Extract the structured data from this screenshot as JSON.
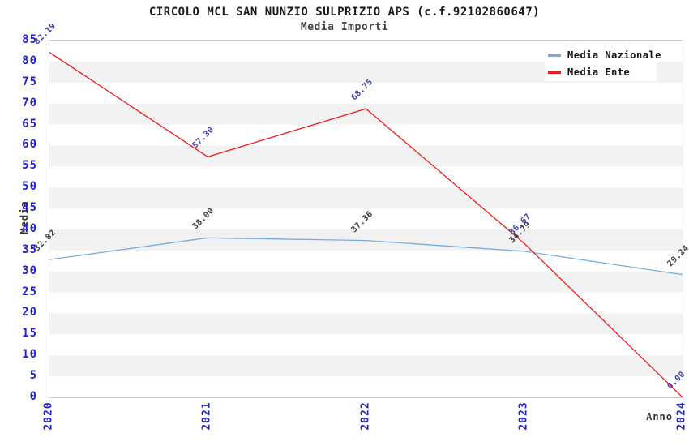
{
  "page": {
    "title": "CIRCOLO MCL SAN NUNZIO SULPRIZIO APS (c.f.92102860647)",
    "subtitle": "Media Importi"
  },
  "chart_data": {
    "type": "line",
    "title": "CIRCOLO MCL SAN NUNZIO SULPRIZIO APS (c.f.92102860647)",
    "subtitle": "Media Importi",
    "xlabel": "Anno",
    "ylabel": "Media",
    "x": [
      "2020",
      "2021",
      "2022",
      "2023",
      "2024"
    ],
    "series": [
      {
        "name": "Media Nazionale",
        "color": "#74ade0",
        "label_color": "#3a3a3a",
        "values": [
          32.82,
          38.0,
          37.36,
          34.79,
          29.24
        ],
        "labels": [
          "32.82",
          "38.00",
          "37.36",
          "34.79",
          "29.24"
        ]
      },
      {
        "name": "Media Ente",
        "color": "#ed1c1c",
        "label_color": "#3d3dae",
        "values": [
          82.19,
          57.3,
          68.75,
          36.67,
          0.0
        ],
        "labels": [
          "82.19",
          "57.30",
          "68.75",
          "36.67",
          "0.00"
        ]
      }
    ],
    "ylim": [
      0,
      85
    ],
    "ytick_step": 5,
    "grid": "horizontal alternating bands",
    "legend_position": "top-right",
    "colors": {
      "tick_label": "#2222cc",
      "band_fill": "#f2f2f2",
      "plot_border": "#c8c8c8",
      "title": "#1a1a1a",
      "subtitle": "#444444",
      "axis_label": "#333333",
      "legend_bg": "#ffffff"
    }
  }
}
